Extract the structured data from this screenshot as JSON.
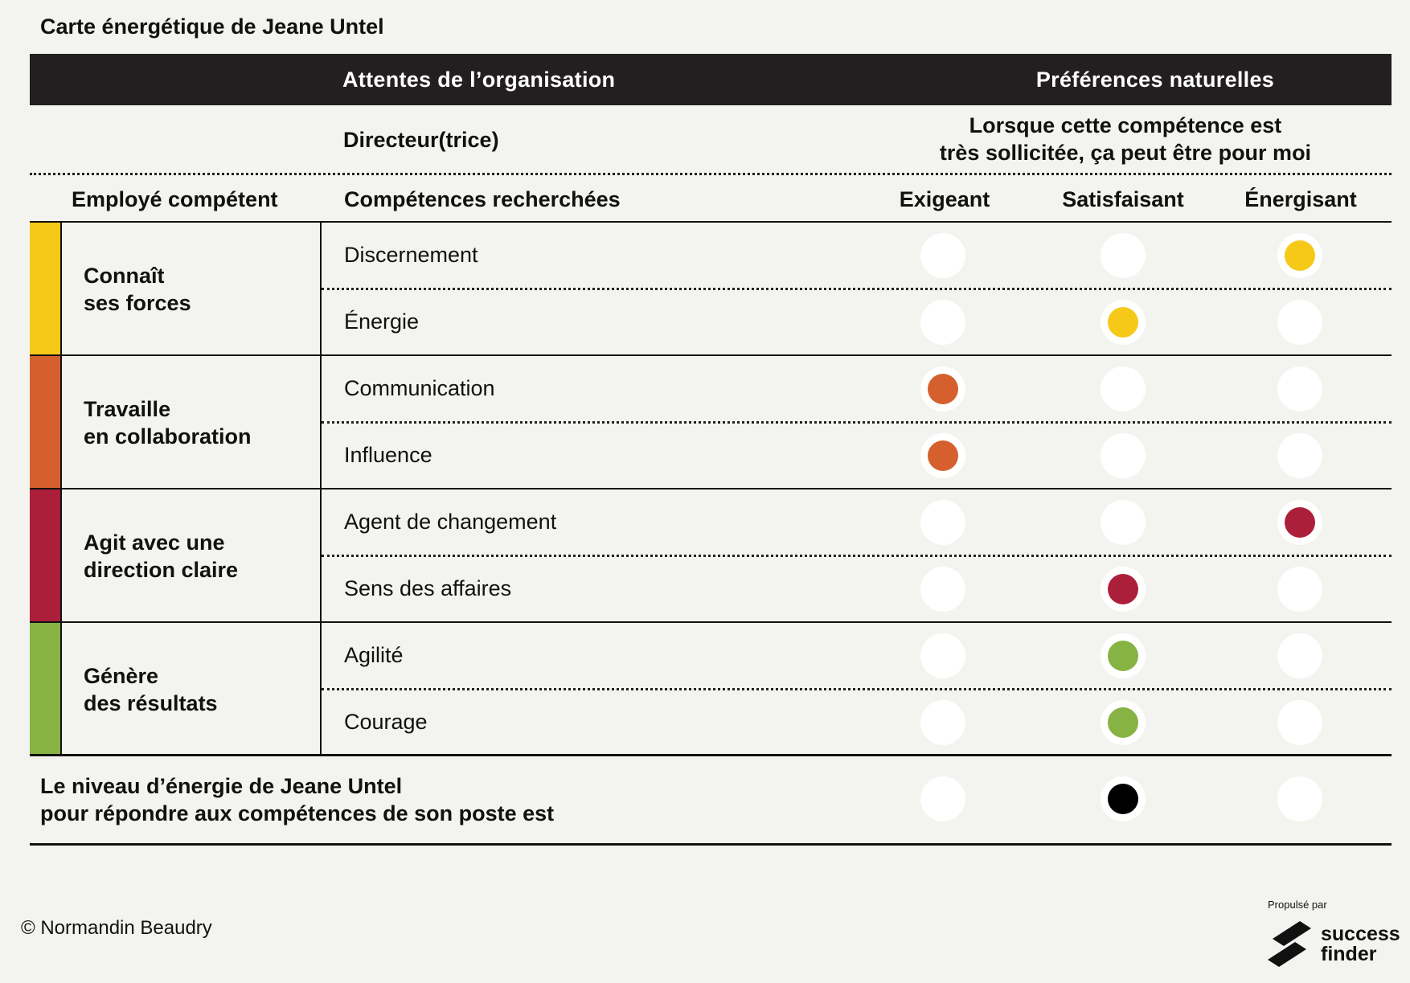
{
  "title": "Carte énergétique de Jeane Untel",
  "header": {
    "left": "Attentes de l’organisation",
    "right": "Préférences naturelles"
  },
  "subheader": {
    "role": "Directeur(trice)",
    "preference_line1": "Lorsque cette compétence est",
    "preference_line2": "très sollicitée, ça peut être pour moi"
  },
  "columns": {
    "category": "Employé compétent",
    "skills": "Compétences recherchées",
    "levels": [
      "Exigeant",
      "Satisfaisant",
      "Énergisant"
    ]
  },
  "categories": [
    {
      "line1": "Connaît",
      "line2": "ses forces",
      "color": "#f6c918",
      "skills": [
        {
          "name": "Discernement",
          "level": 2
        },
        {
          "name": "Énergie",
          "level": 1
        }
      ]
    },
    {
      "line1": "Travaille",
      "line2": "en collaboration",
      "color": "#d5602d",
      "skills": [
        {
          "name": "Communication",
          "level": 0
        },
        {
          "name": "Influence",
          "level": 0
        }
      ]
    },
    {
      "line1": "Agit avec une",
      "line2": "direction claire",
      "color": "#ac1f3a",
      "skills": [
        {
          "name": "Agent de changement",
          "level": 2
        },
        {
          "name": "Sens des affaires",
          "level": 1
        }
      ]
    },
    {
      "line1": "Génère",
      "line2": "des résultats",
      "color": "#86b343",
      "skills": [
        {
          "name": "Agilité",
          "level": 1
        },
        {
          "name": "Courage",
          "level": 1
        }
      ]
    }
  ],
  "summary": {
    "line1": "Le niveau d’énergie de Jeane Untel",
    "line2": "pour répondre aux compétences de son poste est",
    "level": 1,
    "color": "#000000"
  },
  "footer": {
    "copyright": "© Normandin Beaudry",
    "powered_by": "Propulsé par",
    "brand_line1": "success",
    "brand_line2": "finder"
  }
}
